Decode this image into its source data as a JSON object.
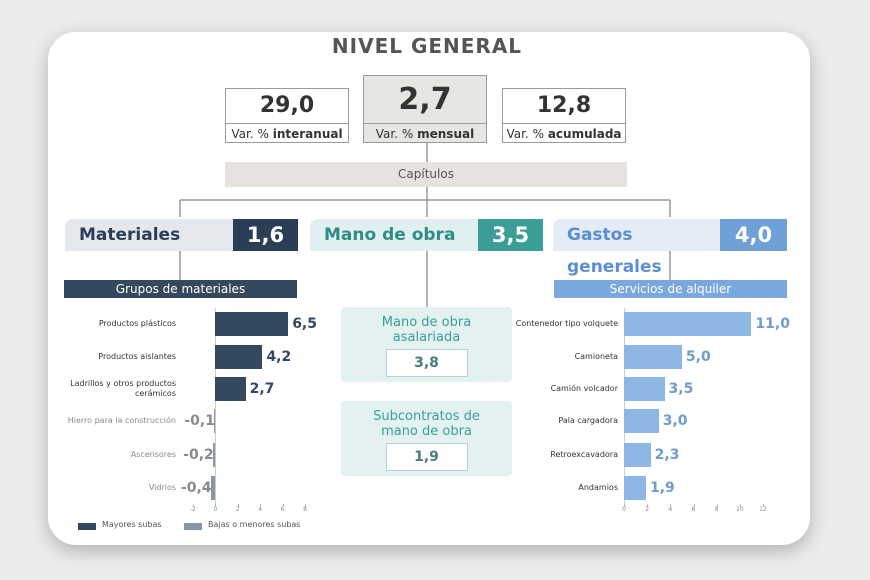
{
  "title": "NIVEL GENERAL",
  "indicators": [
    {
      "value": "29,0",
      "label": "Var. %",
      "label_bold": "interanual"
    },
    {
      "value": "2,7",
      "label": "Var. %",
      "label_bold": "mensual"
    },
    {
      "value": "12,8",
      "label": "Var. %",
      "label_bold": "acumulada"
    }
  ],
  "chapters_label": "Capítulos",
  "chapters": [
    {
      "name": "Materiales",
      "value": "1,6"
    },
    {
      "name": "Mano de obra",
      "value": "3,5"
    },
    {
      "name": "Gastos generales",
      "value": "4,0"
    }
  ],
  "labor_items": [
    {
      "label": "Mano de obra asalariada",
      "value": "3,8"
    },
    {
      "label": "Subcontratos de mano de obra",
      "value": "1,9"
    }
  ],
  "chart_data": [
    {
      "type": "bar",
      "orientation": "horizontal",
      "title": "Grupos de materiales",
      "categories": [
        "Productos plásticos",
        "Productos aislantes",
        "Ladrillos y otros productos cerámicos",
        "Hierro para la construcción",
        "Ascensores",
        "Vidrios"
      ],
      "values": [
        6.5,
        4.2,
        2.7,
        -0.1,
        -0.2,
        -0.4
      ],
      "value_labels": [
        "6,5",
        "4,2",
        "2,7",
        "-0,1",
        "-0,2",
        "-0,4"
      ],
      "colors": [
        "#34495e",
        "#34495e",
        "#34495e",
        "#8796a8",
        "#8796a8",
        "#8796a8"
      ],
      "xlim": [
        -2,
        8
      ],
      "xticks": [
        -2,
        0,
        2,
        4,
        6,
        8
      ],
      "legend": [
        {
          "name": "Mayores subas",
          "color": "#34495e"
        },
        {
          "name": "Bajas o menores subas",
          "color": "#8796a8"
        }
      ]
    },
    {
      "type": "bar",
      "orientation": "horizontal",
      "title": "Servicios de alquiler",
      "categories": [
        "Contenedor tipo volquete",
        "Camioneta",
        "Camión volcador",
        "Pala cargadora",
        "Retroexcavadora",
        "Andamios"
      ],
      "values": [
        11.0,
        5.0,
        3.5,
        3.0,
        2.3,
        1.9
      ],
      "value_labels": [
        "11,0",
        "5,0",
        "3,5",
        "3,0",
        "2,3",
        "1,9"
      ],
      "color": "#8db6e2",
      "xlim": [
        0,
        12
      ],
      "xticks": [
        0,
        2,
        4,
        6,
        8,
        10,
        12
      ]
    }
  ]
}
